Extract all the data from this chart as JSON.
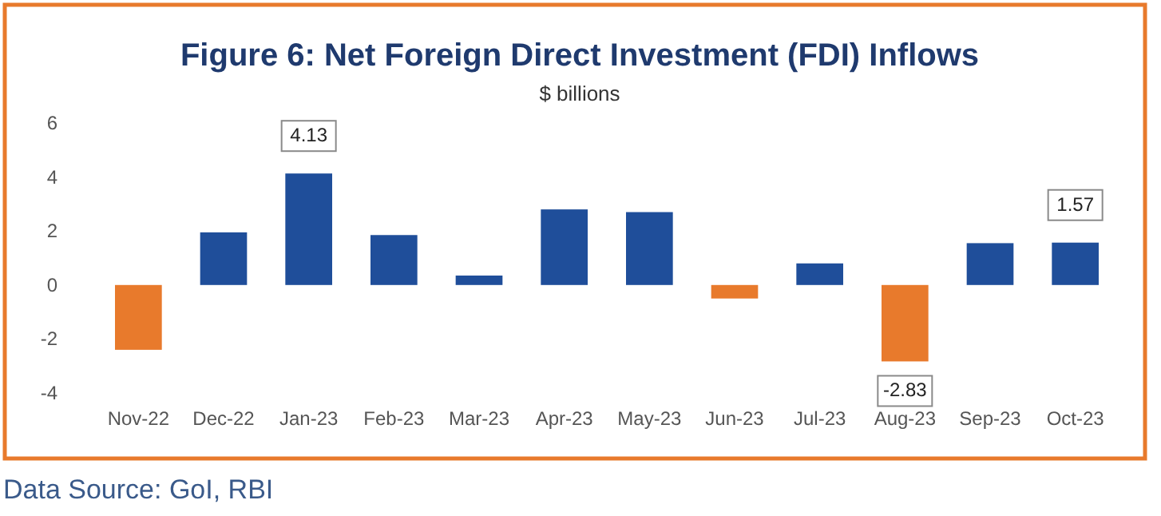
{
  "chart_data": {
    "type": "bar",
    "title": "Figure 6: Net Foreign Direct Investment (FDI) Inflows",
    "subtitle": "$ billions",
    "categories": [
      "Nov-22",
      "Dec-22",
      "Jan-23",
      "Feb-23",
      "Mar-23",
      "Apr-23",
      "May-23",
      "Jun-23",
      "Jul-23",
      "Aug-23",
      "Sep-23",
      "Oct-23"
    ],
    "values": [
      -2.4,
      1.95,
      4.13,
      1.85,
      0.35,
      2.8,
      2.7,
      -0.5,
      0.8,
      -2.83,
      1.55,
      1.57
    ],
    "colors": [
      "#e87a2c",
      "#1f4e9a",
      "#1f4e9a",
      "#1f4e9a",
      "#1f4e9a",
      "#1f4e9a",
      "#1f4e9a",
      "#e87a2c",
      "#1f4e9a",
      "#e87a2c",
      "#1f4e9a",
      "#1f4e9a"
    ],
    "value_labels": [
      null,
      null,
      "4.13",
      null,
      null,
      null,
      null,
      null,
      null,
      "-2.83",
      null,
      "1.57"
    ],
    "ylim": [
      -4,
      6
    ],
    "yticks": [
      -4,
      -2,
      0,
      2,
      4,
      6
    ],
    "grid": false,
    "annotations": [
      "Data Source: GoI, RBI"
    ]
  }
}
